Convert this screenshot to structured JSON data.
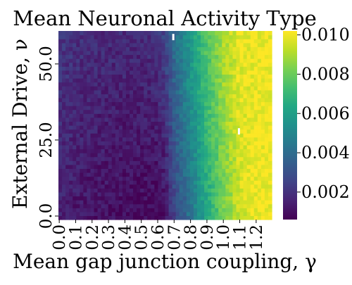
{
  "chart_data": {
    "type": "heatmap",
    "title": "Mean Neuronal Activity Type",
    "xlabel": "Mean gap junction coupling, γ",
    "ylabel": "External Drive, ν",
    "x_tick_labels": [
      "0.0",
      "0.1",
      "0.2",
      "0.3",
      "0.4",
      "0.5",
      "0.6",
      "0.7",
      "0.8",
      "0.9",
      "1.0",
      "1.1",
      "1.2"
    ],
    "y_tick_labels": [
      "0.0",
      "25.0",
      "50.0"
    ],
    "x_range": [
      0.0,
      1.3
    ],
    "y_range": [
      0.0,
      62.0
    ],
    "colorbar": {
      "tick_labels": [
        "0.002",
        "0.004",
        "0.006",
        "0.008",
        "0.010"
      ],
      "ticks": [
        0.002,
        0.004,
        0.006,
        0.008,
        0.01
      ],
      "range": [
        0.0006,
        0.0102
      ],
      "colormap": "viridis"
    },
    "value_profile": {
      "description_axis": "x",
      "x": [
        0.0,
        0.1,
        0.2,
        0.3,
        0.4,
        0.5,
        0.6,
        0.65,
        0.7,
        0.8,
        0.9,
        1.0,
        1.1,
        1.2,
        1.3
      ],
      "value_at_low_drive": [
        0.0016,
        0.0012,
        0.0011,
        0.001,
        0.0009,
        0.0008,
        0.0008,
        0.001,
        0.0024,
        0.0042,
        0.0062,
        0.008,
        0.0094,
        0.01,
        0.01
      ],
      "value_at_high_drive": [
        0.0022,
        0.002,
        0.0019,
        0.0018,
        0.0018,
        0.0018,
        0.002,
        0.0026,
        0.004,
        0.0058,
        0.0076,
        0.009,
        0.0098,
        0.01,
        0.01
      ]
    },
    "missing_cells": [
      {
        "x": 0.7,
        "y": 60.0
      },
      {
        "x": 1.1,
        "y": 29.0
      }
    ]
  }
}
